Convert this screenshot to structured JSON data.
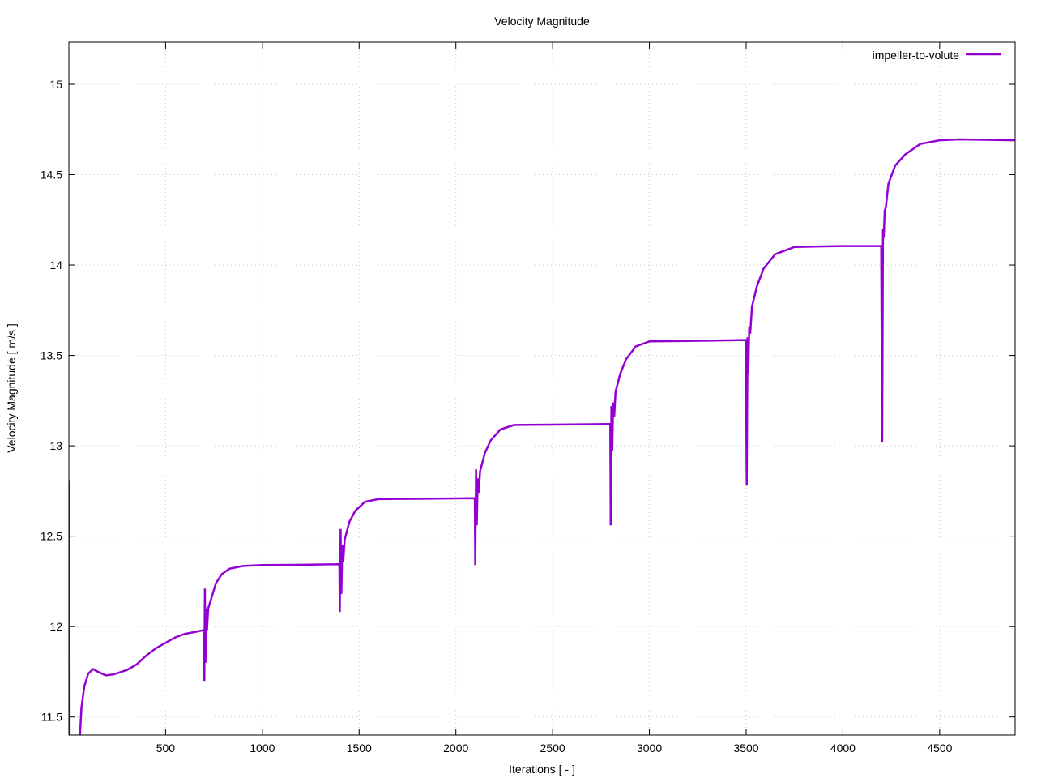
{
  "chart_data": {
    "type": "line",
    "title": "Velocity Magnitude",
    "xlabel": "Iterations [ - ]",
    "ylabel": "Velocity Magnitude [ m/s ]",
    "xlim": [
      0,
      4890
    ],
    "ylim": [
      11.4,
      15.233
    ],
    "xticks": [
      500,
      1000,
      1500,
      2000,
      2500,
      3000,
      3500,
      4000,
      4500
    ],
    "xtick_labels": [
      "500",
      "1000",
      "1500",
      "2000",
      "2500",
      "3000",
      "3500",
      "4000",
      "4500"
    ],
    "yticks": [
      11.5,
      12,
      12.5,
      13,
      13.5,
      14,
      14.5,
      15
    ],
    "ytick_labels": [
      "11.5",
      "12",
      "12.5",
      "13",
      "13.5",
      "14",
      "14.5",
      "15"
    ],
    "grid": true,
    "legend_placement": "top-right",
    "series": [
      {
        "name": "impeller-to-volute",
        "color": "#9400d3",
        "points": [
          [
            2,
            12.81
          ],
          [
            4,
            11.0
          ],
          [
            50,
            11.0
          ],
          [
            55,
            11.35
          ],
          [
            65,
            11.55
          ],
          [
            80,
            11.67
          ],
          [
            100,
            11.74
          ],
          [
            125,
            11.765
          ],
          [
            150,
            11.75
          ],
          [
            190,
            11.73
          ],
          [
            230,
            11.735
          ],
          [
            300,
            11.76
          ],
          [
            350,
            11.79
          ],
          [
            400,
            11.84
          ],
          [
            450,
            11.88
          ],
          [
            500,
            11.91
          ],
          [
            550,
            11.94
          ],
          [
            600,
            11.96
          ],
          [
            650,
            11.97
          ],
          [
            695,
            11.98
          ],
          [
            698,
            11.98
          ],
          [
            700,
            11.7
          ],
          [
            703,
            12.21
          ],
          [
            706,
            11.8
          ],
          [
            710,
            12.1
          ],
          [
            714,
            11.98
          ],
          [
            720,
            12.1
          ],
          [
            740,
            12.17
          ],
          [
            760,
            12.24
          ],
          [
            790,
            12.29
          ],
          [
            830,
            12.32
          ],
          [
            900,
            12.335
          ],
          [
            1000,
            12.34
          ],
          [
            1200,
            12.342
          ],
          [
            1395,
            12.345
          ],
          [
            1398,
            12.345
          ],
          [
            1400,
            12.08
          ],
          [
            1404,
            12.54
          ],
          [
            1408,
            12.18
          ],
          [
            1413,
            12.45
          ],
          [
            1418,
            12.36
          ],
          [
            1425,
            12.48
          ],
          [
            1450,
            12.58
          ],
          [
            1480,
            12.64
          ],
          [
            1530,
            12.69
          ],
          [
            1600,
            12.705
          ],
          [
            1800,
            12.707
          ],
          [
            2095,
            12.71
          ],
          [
            2098,
            12.71
          ],
          [
            2100,
            12.34
          ],
          [
            2104,
            12.87
          ],
          [
            2108,
            12.56
          ],
          [
            2113,
            12.82
          ],
          [
            2118,
            12.74
          ],
          [
            2125,
            12.86
          ],
          [
            2150,
            12.96
          ],
          [
            2180,
            13.03
          ],
          [
            2230,
            13.09
          ],
          [
            2300,
            13.115
          ],
          [
            2500,
            13.117
          ],
          [
            2795,
            13.12
          ],
          [
            2798,
            13.12
          ],
          [
            2800,
            12.56
          ],
          [
            2804,
            13.22
          ],
          [
            2808,
            12.97
          ],
          [
            2813,
            13.24
          ],
          [
            2818,
            13.16
          ],
          [
            2825,
            13.3
          ],
          [
            2850,
            13.4
          ],
          [
            2880,
            13.48
          ],
          [
            2930,
            13.55
          ],
          [
            3000,
            13.578
          ],
          [
            3200,
            13.58
          ],
          [
            3495,
            13.585
          ],
          [
            3498,
            13.585
          ],
          [
            3503,
            12.78
          ],
          [
            3507,
            13.6
          ],
          [
            3511,
            13.4
          ],
          [
            3516,
            13.66
          ],
          [
            3521,
            13.62
          ],
          [
            3530,
            13.77
          ],
          [
            3555,
            13.88
          ],
          [
            3590,
            13.98
          ],
          [
            3650,
            14.06
          ],
          [
            3750,
            14.1
          ],
          [
            4000,
            14.105
          ],
          [
            4195,
            14.105
          ],
          [
            4198,
            14.105
          ],
          [
            4203,
            13.02
          ],
          [
            4207,
            14.2
          ],
          [
            4211,
            14.15
          ],
          [
            4216,
            14.3
          ],
          [
            4222,
            14.32
          ],
          [
            4235,
            14.45
          ],
          [
            4270,
            14.55
          ],
          [
            4320,
            14.61
          ],
          [
            4400,
            14.67
          ],
          [
            4500,
            14.69
          ],
          [
            4600,
            14.695
          ],
          [
            4890,
            14.69
          ]
        ]
      }
    ]
  }
}
